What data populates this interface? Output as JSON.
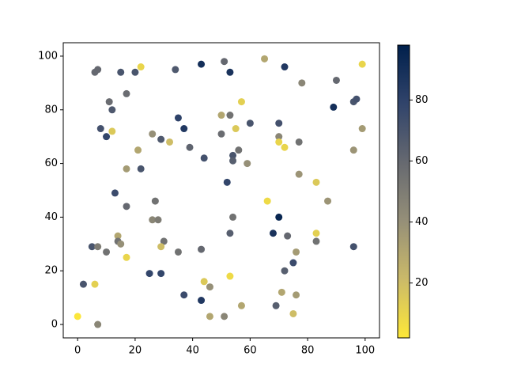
{
  "chart_data": {
    "type": "scatter",
    "x": [
      0,
      2,
      6,
      7,
      5,
      7,
      10,
      14,
      14,
      15,
      17,
      17,
      13,
      22,
      17,
      21,
      25,
      29,
      27,
      26,
      28,
      30,
      29,
      35,
      37,
      43,
      43,
      44,
      46,
      46,
      51,
      53,
      57,
      54,
      53,
      69,
      71,
      75,
      76,
      72,
      75,
      76,
      68,
      73,
      70,
      83,
      83,
      87,
      96,
      66,
      83,
      77,
      52,
      44,
      39,
      29,
      26,
      32,
      37,
      35,
      12,
      8,
      10,
      12,
      11,
      17,
      15,
      7,
      6,
      20,
      22,
      34,
      43,
      51,
      53,
      65,
      72,
      78,
      90,
      89,
      96,
      97,
      99,
      99,
      96,
      77,
      70,
      70,
      72,
      70,
      60,
      57,
      53,
      50,
      55,
      50,
      56,
      54,
      54,
      59
    ],
    "y": [
      3,
      15,
      15,
      0,
      29,
      29,
      27,
      33,
      31,
      30,
      25,
      44,
      49,
      58,
      58,
      65,
      19,
      19,
      46,
      39,
      39,
      31,
      29,
      27,
      11,
      9,
      28,
      16,
      14,
      3,
      3,
      18,
      7,
      40,
      34,
      7,
      12,
      4,
      11,
      20,
      23,
      27,
      34,
      33,
      40,
      31,
      34,
      46,
      29,
      46,
      53,
      56,
      53,
      62,
      66,
      69,
      71,
      68,
      73,
      77,
      72,
      73,
      70,
      80,
      83,
      86,
      94,
      95,
      94,
      94,
      96,
      95,
      97,
      98,
      94,
      99,
      96,
      90,
      91,
      81,
      83,
      84,
      97,
      73,
      65,
      68,
      70,
      68,
      66,
      75,
      75,
      83,
      78,
      78,
      73,
      71,
      65,
      63,
      61,
      60
    ],
    "c": [
      3,
      70,
      12,
      45,
      70,
      50,
      55,
      30,
      55,
      40,
      10,
      60,
      75,
      70,
      35,
      30,
      78,
      78,
      55,
      45,
      50,
      55,
      20,
      55,
      75,
      85,
      60,
      15,
      40,
      30,
      45,
      8,
      30,
      55,
      65,
      65,
      30,
      20,
      35,
      65,
      75,
      35,
      88,
      60,
      95,
      55,
      12,
      38,
      72,
      8,
      15,
      38,
      78,
      72,
      62,
      68,
      40,
      20,
      85,
      80,
      15,
      72,
      78,
      68,
      58,
      58,
      70,
      60,
      60,
      70,
      10,
      68,
      90,
      60,
      88,
      30,
      85,
      45,
      60,
      90,
      70,
      72,
      10,
      35,
      38,
      55,
      45,
      10,
      10,
      72,
      70,
      12,
      55,
      30,
      15,
      58,
      55,
      70,
      65,
      40
    ],
    "xlim": [
      -5,
      105
    ],
    "ylim": [
      -5,
      105
    ],
    "xticks": [
      0,
      20,
      40,
      60,
      80,
      100
    ],
    "yticks": [
      0,
      20,
      40,
      60,
      80,
      100
    ],
    "colorbar": {
      "lim": [
        2,
        98
      ],
      "ticks": [
        20,
        40,
        60,
        80
      ]
    },
    "colormap": [
      "#fee838",
      "#cbba69",
      "#958f78",
      "#666970",
      "#31446b",
      "#00204c"
    ]
  }
}
